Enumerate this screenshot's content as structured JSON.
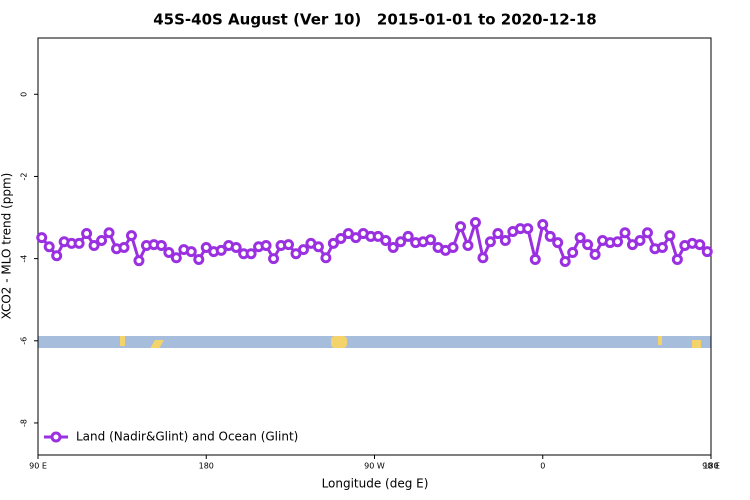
{
  "chart_data": {
    "type": "line",
    "title": "45S-40S August (Ver 10)   2015-01-01 to 2020-12-18",
    "x_label": "Longitude (deg E)",
    "y_label": "XCO2 - MLO trend (ppm)",
    "xlim": [
      90,
      450
    ],
    "xticks": [
      {
        "value": 90,
        "label": "90 E"
      },
      {
        "value": 180,
        "label": "180"
      },
      {
        "value": 270,
        "label": "90 W"
      },
      {
        "value": 360,
        "label": "0"
      },
      {
        "value": 450,
        "label": "90 E"
      },
      {
        "value": 540,
        "label": "180"
      }
    ],
    "ylim": [
      -8.78,
      1.37
    ],
    "yticks": [
      0,
      -2,
      -4,
      -6,
      -8
    ],
    "legend": "bottom-left",
    "x": [
      92,
      96,
      100,
      104,
      108,
      112,
      116,
      120,
      124,
      128,
      132,
      136,
      140,
      144,
      148,
      152,
      156,
      160,
      164,
      168,
      172,
      176,
      180,
      184,
      188,
      192,
      196,
      200,
      204,
      208,
      212,
      216,
      220,
      224,
      228,
      232,
      236,
      240,
      244,
      248,
      252,
      256,
      260,
      264,
      268,
      272,
      276,
      280,
      284,
      288,
      292,
      296,
      300,
      304,
      308,
      312,
      316,
      320,
      324,
      328,
      332,
      336,
      340,
      344,
      348,
      352,
      356,
      360,
      364,
      368,
      372,
      376,
      380,
      384,
      388,
      392,
      396,
      400,
      404,
      408,
      412,
      416,
      420,
      424,
      428,
      432,
      436,
      440,
      444,
      448
    ],
    "series": [
      {
        "name": "Land (Nadir&Glint) and Ocean (Glint)",
        "color": "#9b30e0",
        "values": [
          -3.49,
          -3.71,
          -3.93,
          -3.59,
          -3.63,
          -3.63,
          -3.39,
          -3.68,
          -3.56,
          -3.37,
          -3.76,
          -3.73,
          -3.44,
          -4.05,
          -3.68,
          -3.66,
          -3.68,
          -3.85,
          -3.98,
          -3.78,
          -3.83,
          -4.02,
          -3.73,
          -3.83,
          -3.8,
          -3.68,
          -3.73,
          -3.88,
          -3.88,
          -3.71,
          -3.68,
          -4.0,
          -3.68,
          -3.66,
          -3.88,
          -3.78,
          -3.63,
          -3.71,
          -3.98,
          -3.63,
          -3.51,
          -3.39,
          -3.49,
          -3.39,
          -3.46,
          -3.46,
          -3.56,
          -3.73,
          -3.59,
          -3.46,
          -3.61,
          -3.59,
          -3.54,
          -3.73,
          -3.8,
          -3.73,
          -3.22,
          -3.68,
          -3.12,
          -3.98,
          -3.59,
          -3.39,
          -3.56,
          -3.34,
          -3.27,
          -3.27,
          -4.02,
          -3.17,
          -3.46,
          -3.61,
          -4.07,
          -3.85,
          -3.49,
          -3.66,
          -3.9,
          -3.56,
          -3.61,
          -3.59,
          -3.37,
          -3.66,
          -3.56,
          -3.37,
          -3.76,
          -3.73,
          -3.44,
          -4.02,
          -3.68,
          -3.63,
          -3.66,
          -3.83
        ]
      }
    ]
  }
}
